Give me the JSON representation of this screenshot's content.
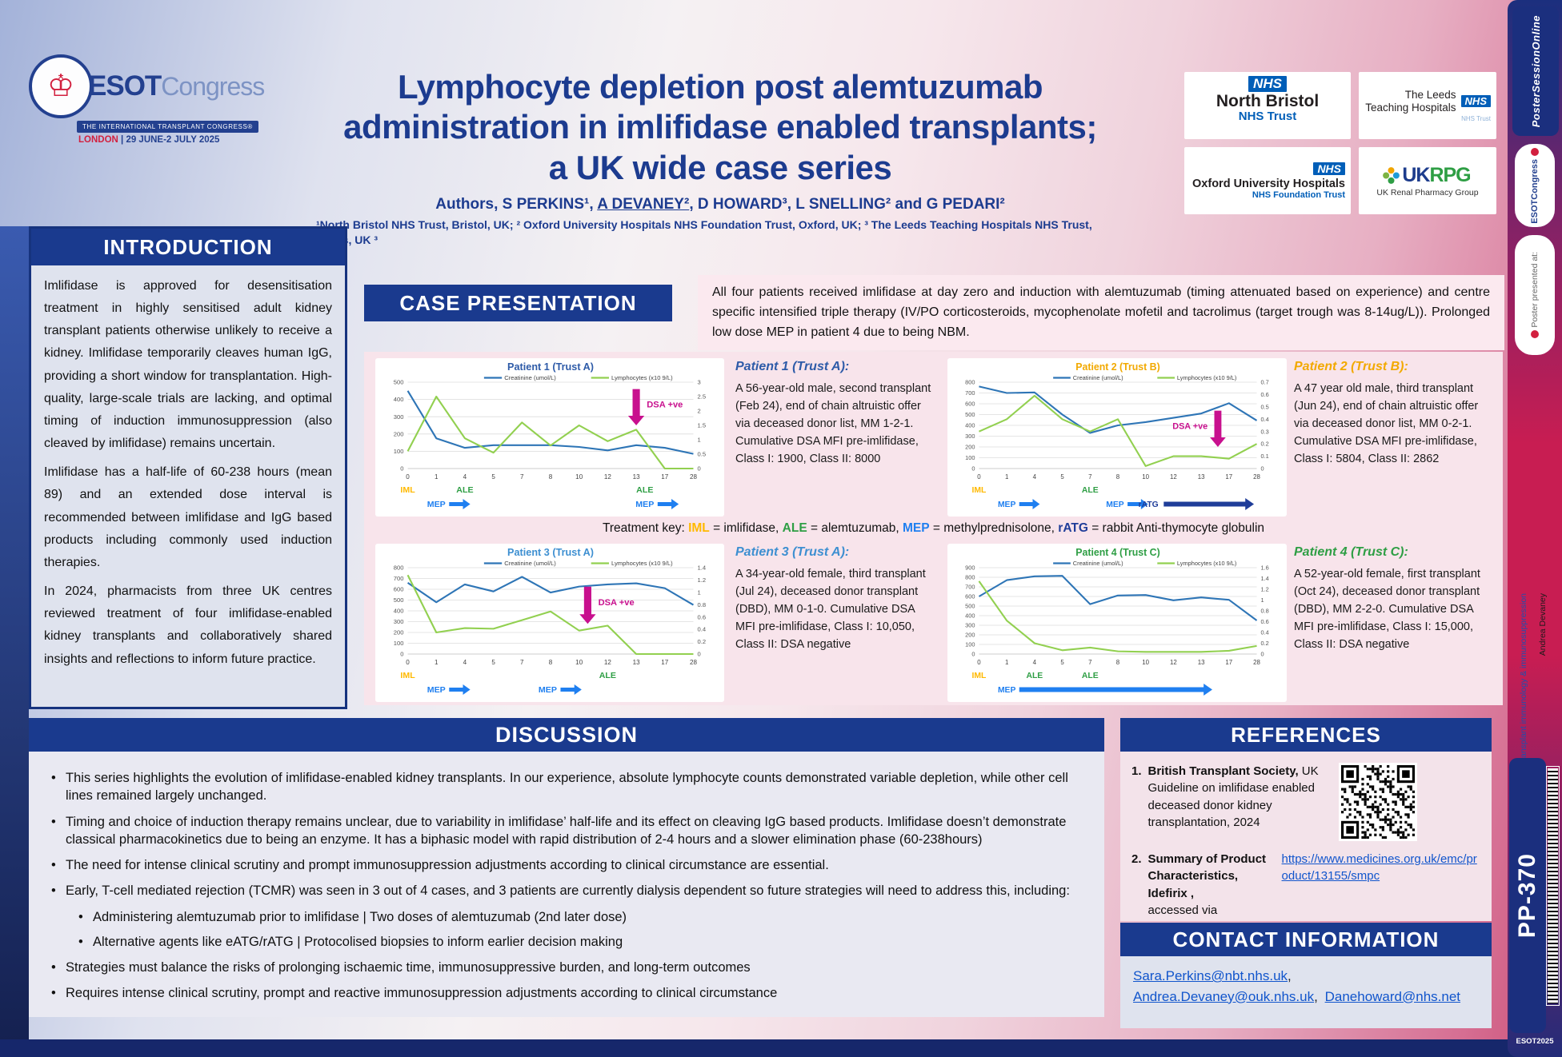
{
  "header": {
    "logo": {
      "esot": "ESOT",
      "congress": "Congress",
      "banner": "THE INTERNATIONAL TRANSPLANT CONGRESS®",
      "city": "LONDON ",
      "date": "| 29 JUNE-2 JULY 2025"
    },
    "title": "Lymphocyte depletion post alemtuzumab administration in imlifidase enabled transplants; a UK wide case series",
    "authors_prefix": "Authors, S PERKINS¹, ",
    "authors_underlined": "A DEVANEY²",
    "authors_suffix": ", D HOWARD³, L SNELLING² and G PEDARI²",
    "affiliations": "¹North Bristol NHS Trust, Bristol, UK; ² Oxford University Hospitals NHS Foundation Trust, Oxford, UK; ³ The Leeds Teaching Hospitals NHS Trust, Leeds, UK ³"
  },
  "logos": {
    "north_bristol": {
      "nhs": "NHS",
      "line1": "North Bristol",
      "line2": "NHS Trust"
    },
    "leeds": {
      "nhs": "NHS",
      "line1": "The Leeds",
      "line2": "Teaching Hospitals",
      "line3": "NHS Trust"
    },
    "oxford": {
      "nhs": "NHS",
      "line1": "Oxford University Hospitals",
      "line2": "NHS Foundation Trust"
    },
    "ukrpg": {
      "uk": "UK",
      "rpg": "RPG",
      "name": "UK Renal Pharmacy Group"
    }
  },
  "introduction": {
    "heading": "INTRODUCTION",
    "paragraphs": [
      "Imlifidase is approved for desensitisation treatment in highly sensitised adult kidney transplant patients otherwise unlikely to receive a kidney.  Imlifidase temporarily cleaves human IgG, providing a short window for transplantation. High-quality, large-scale trials are lacking, and optimal timing of induction immunosuppression (also cleaved by imlifidase) remains uncertain.",
      "Imlifidase has a half-life of 60-238 hours (mean 89) and an extended dose interval is recommended between imlifidase and IgG based products including commonly used induction therapies.",
      "In 2024, pharmacists from three UK centres reviewed treatment of four imlifidase-enabled kidney transplants and collaboratively shared insights and reflections to inform future practice."
    ]
  },
  "case_presentation": {
    "heading": "CASE PRESENTATION",
    "summary": "All four patients received imlifidase at day zero and induction with alemtuzumab (timing attenuated based on experience) and centre specific intensified triple therapy (IV/PO corticosteroids, mycophenolate mofetil and tacrolimus (target trough was 8-14ug/L)). Prolonged low dose MEP in patient 4 due to being NBM.",
    "treatment_key": {
      "prefix": "Treatment key: ",
      "items": [
        {
          "abbr": "IML",
          "color": "#FFB900",
          "text": " = imlifidase, "
        },
        {
          "abbr": "ALE",
          "color": "#2E9E44",
          "text": " = alemtuzumab,  "
        },
        {
          "abbr": "MEP",
          "color": "#1F7FF0",
          "text": " = methylprednisolone, "
        },
        {
          "abbr": "rATG",
          "color": "#1F3D99",
          "text": " = rabbit Anti-thymocyte globulin"
        }
      ]
    },
    "patients": [
      {
        "title": "Patient 1 (Trust A):",
        "title_color": "#2E5BA8",
        "description": "A 56-year-old male, second transplant (Feb 24), end of chain altruistic  offer via deceased donor list, MM 1-2-1. Cumulative DSA MFI pre-imlifidase, Class I: 1900, Class II: 8000"
      },
      {
        "title": "Patient 2 (Trust B):",
        "title_color": "#F2A900",
        "description": "A 47 year old male, third transplant (Jun 24), end of chain altruistic offer via deceased  donor list, MM 0-2-1. Cumulative DSA MFI pre-imlifidase, Class I: 5804, Class II: 2862"
      },
      {
        "title": "Patient 3 (Trust A):",
        "title_color": "#3D8FD1",
        "description": "A 34-year-old female, third transplant (Jul 24), deceased donor transplant (DBD), MM 0-1-0. Cumulative DSA MFI pre-imlifidase, Class I: 10,050, Class II: DSA negative"
      },
      {
        "title": "Patient 4 (Trust C):",
        "title_color": "#2E9E44",
        "description": "A 52-year-old female, first transplant (Oct 24), deceased donor transplant (DBD), MM 2-2-0. Cumulative DSA MFI pre-imlifidase, Class I: 15,000, Class II: DSA negative"
      }
    ]
  },
  "chart_data": [
    {
      "type": "line",
      "title": "Patient 1 (Trust A)",
      "title_color": "#2E5BA8",
      "categories": [
        0,
        1,
        4,
        5,
        7,
        8,
        10,
        12,
        13,
        17,
        28
      ],
      "series": [
        {
          "name": "Creatinine (umol/L)",
          "axis": "left",
          "color": "#2E75B6",
          "values": [
            450,
            175,
            120,
            135,
            135,
            135,
            125,
            105,
            135,
            120,
            85
          ]
        },
        {
          "name": "Lymphocytes (x10 9/L)",
          "axis": "right",
          "color": "#92D050",
          "values": [
            0.6,
            2.5,
            1.05,
            0.55,
            1.6,
            0.8,
            1.5,
            0.95,
            1.35,
            0,
            0
          ]
        }
      ],
      "left_axis": {
        "min": 0,
        "max": 500,
        "step": 100
      },
      "right_axis": {
        "min": 0,
        "max": 3,
        "step": 0.5
      },
      "grid": true,
      "legend_position": "top",
      "dsa_annotation": {
        "label": "DSA +ve",
        "xi": 8,
        "side": "right",
        "top": 0.08,
        "bottom": 0.5
      },
      "treatments": [
        {
          "label": "IML",
          "color": "#FFB900",
          "xi": 0,
          "row": 1
        },
        {
          "label": "MEP",
          "color": "#1F7FF0",
          "xi": 1,
          "row": 2,
          "arrow": "short"
        },
        {
          "label": "ALE",
          "color": "#2E9E44",
          "xi": 2,
          "row": 1
        },
        {
          "label": "ALE",
          "color": "#2E9E44",
          "xi": 8.3,
          "row": 1
        },
        {
          "label": "MEP",
          "color": "#1F7FF0",
          "xi": 8.3,
          "row": 2,
          "arrow": "short"
        }
      ]
    },
    {
      "type": "line",
      "title": "Patient 2 (Trust B)",
      "title_color": "#F2A900",
      "categories": [
        0,
        1,
        4,
        5,
        7,
        8,
        10,
        12,
        13,
        17,
        28
      ],
      "series": [
        {
          "name": "Creatinine (umol/L)",
          "axis": "left",
          "color": "#2E75B6",
          "values": [
            760,
            700,
            705,
            500,
            330,
            400,
            430,
            470,
            510,
            605,
            445
          ]
        },
        {
          "name": "Lymphocytes (x10 9/L)",
          "axis": "right",
          "color": "#92D050",
          "values": [
            0.3,
            0.4,
            0.59,
            0.4,
            0.3,
            0.4,
            0.02,
            0.1,
            0.1,
            0.08,
            0.2
          ]
        }
      ],
      "left_axis": {
        "min": 0,
        "max": 800,
        "step": 100
      },
      "right_axis": {
        "min": 0,
        "max": 0.7,
        "step": 0.1
      },
      "grid": true,
      "legend_position": "top",
      "dsa_annotation": {
        "label": "DSA +ve",
        "xi": 8.6,
        "side": "left",
        "top": 0.33,
        "bottom": 0.75
      },
      "treatments": [
        {
          "label": "IML",
          "color": "#FFB900",
          "xi": 0,
          "row": 1
        },
        {
          "label": "MEP",
          "color": "#1F7FF0",
          "xi": 1,
          "row": 2,
          "arrow": "short"
        },
        {
          "label": "ALE",
          "color": "#2E9E44",
          "xi": 4,
          "row": 1
        },
        {
          "label": "MEP",
          "color": "#1F7FF0",
          "xi": 4.9,
          "row": 2,
          "arrow": "short"
        },
        {
          "label": "rATG",
          "color": "#1F3D99",
          "xi": 6.1,
          "row": 2,
          "arrow": "long",
          "to": 9.9
        }
      ]
    },
    {
      "type": "line",
      "title": "Patient 3 (Trust A)",
      "title_color": "#3D8FD1",
      "categories": [
        0,
        1,
        4,
        5,
        7,
        8,
        10,
        12,
        13,
        17,
        28
      ],
      "series": [
        {
          "name": "Creatinine (umol/L)",
          "axis": "left",
          "color": "#2E75B6",
          "values": [
            660,
            480,
            645,
            580,
            715,
            570,
            625,
            645,
            655,
            610,
            455
          ]
        },
        {
          "name": "Lymphocytes (x10 9/L)",
          "axis": "right",
          "color": "#92D050",
          "values": [
            1.28,
            0.35,
            0.42,
            0.41,
            0.55,
            0.69,
            0.38,
            0.46,
            0,
            0,
            0
          ]
        }
      ],
      "left_axis": {
        "min": 0,
        "max": 800,
        "step": 100
      },
      "right_axis": {
        "min": 0,
        "max": 1.4,
        "step": 0.2
      },
      "grid": true,
      "legend_position": "top",
      "dsa_annotation": {
        "label": "DSA +ve",
        "xi": 6.3,
        "side": "right",
        "top": 0.22,
        "bottom": 0.65
      },
      "treatments": [
        {
          "label": "IML",
          "color": "#FFB900",
          "xi": 0,
          "row": 1
        },
        {
          "label": "MEP",
          "color": "#1F7FF0",
          "xi": 1,
          "row": 2,
          "arrow": "short"
        },
        {
          "label": "MEP",
          "color": "#1F7FF0",
          "xi": 4.9,
          "row": 2,
          "arrow": "short"
        },
        {
          "label": "ALE",
          "color": "#2E9E44",
          "xi": 7,
          "row": 1
        }
      ]
    },
    {
      "type": "line",
      "title": "Patient 4 (Trust C)",
      "title_color": "#2E9E44",
      "categories": [
        0,
        1,
        4,
        5,
        7,
        8,
        10,
        12,
        13,
        17,
        28
      ],
      "series": [
        {
          "name": "Creatinine (umol/L)",
          "axis": "left",
          "color": "#2E75B6",
          "values": [
            600,
            770,
            810,
            815,
            520,
            610,
            615,
            560,
            590,
            565,
            350
          ]
        },
        {
          "name": "Lymphocytes (x10 9/L)",
          "axis": "right",
          "color": "#92D050",
          "values": [
            1.35,
            0.62,
            0.2,
            0.07,
            0.12,
            0.05,
            0.04,
            0.04,
            0.04,
            0.06,
            0.15
          ]
        }
      ],
      "left_axis": {
        "min": 0,
        "max": 900,
        "step": 100
      },
      "right_axis": {
        "min": 0,
        "max": 1.6,
        "step": 0.2
      },
      "grid": true,
      "legend_position": "top",
      "dsa_annotation": null,
      "treatments": [
        {
          "label": "IML",
          "color": "#FFB900",
          "xi": 0,
          "row": 1
        },
        {
          "label": "MEP",
          "color": "#1F7FF0",
          "xi": 1,
          "row": 2,
          "arrow": "long",
          "to": 8.4
        },
        {
          "label": "ALE",
          "color": "#2E9E44",
          "xi": 2,
          "row": 1
        },
        {
          "label": "ALE",
          "color": "#2E9E44",
          "xi": 4,
          "row": 1
        }
      ]
    }
  ],
  "discussion": {
    "heading": "DISCUSSION",
    "bullets": [
      {
        "level": 1,
        "text": "This series highlights the evolution of imlifidase-enabled kidney transplants. In our experience, absolute lymphocyte counts demonstrated variable depletion, while other cell lines remained largely unchanged."
      },
      {
        "level": 1,
        "text": "Timing and choice of induction therapy remains unclear, due to variability in imlifidase’ half-life and its effect on cleaving IgG based products. Imlifidase doesn’t demonstrate classical pharmacokinetics due to being an enzyme. It has a biphasic model with rapid distribution of 2-4 hours and a slower elimination phase (60-238hours)"
      },
      {
        "level": 1,
        "text": "The need for intense clinical scrutiny and prompt immunosuppression adjustments according to clinical circumstance are essential."
      },
      {
        "level": 1,
        "text": "Early, T-cell mediated rejection (TCMR) was seen in 3 out of 4 cases, and 3 patients are currently dialysis dependent so future strategies will need to address this, including:"
      },
      {
        "level": 2,
        "text": "Administering alemtuzumab prior to imlifidase | Two doses of alemtuzumab (2nd later dose)"
      },
      {
        "level": 2,
        "text": "Alternative agents like eATG/rATG | Protocolised biopsies to inform earlier decision making"
      },
      {
        "level": 1,
        "text": "Strategies must balance the risks of prolonging ischaemic time, immunosuppressive burden, and long-term outcomes"
      },
      {
        "level": 1,
        "text": "Requires intense clinical scrutiny, prompt and reactive immunosuppression adjustments according to clinical circumstance"
      }
    ]
  },
  "references": {
    "heading": "REFERENCES",
    "items": [
      {
        "num": "1.",
        "bold": "British Transplant Society,",
        "text": "UK Guideline on imlifidase enabled deceased donor kidney transplantation, 2024"
      },
      {
        "num": "2.",
        "bold": "Summary of Product Characteristics, Idefirix ,",
        "text": "accessed via",
        "link": "https://www.medicines.org.uk/emc/product/13155/smpc"
      }
    ]
  },
  "contact": {
    "heading": "CONTACT INFORMATION",
    "emails": [
      "Sara.Perkins@nbt.nhs.uk",
      "Andrea.Devaney@ouk.nhs.uk",
      "Danehoward@nhs.net"
    ],
    "separator": ","
  },
  "sidebar": {
    "poster_session": "PosterSessionOnline",
    "esot_pill": "ESOTCongress",
    "presented": "Poster presented at:",
    "topic": "Transplant immunology & immunosuppression",
    "presenter": "Andrea Devaney",
    "poster_id": "PP-370",
    "esot_tag": "ESOT2025"
  },
  "colors": {
    "header_bar": "#1a3a8e",
    "creatinine": "#2E75B6",
    "lymphocytes": "#92D050",
    "dsa": "#C8108E",
    "title_text": "#1c3b8f"
  }
}
